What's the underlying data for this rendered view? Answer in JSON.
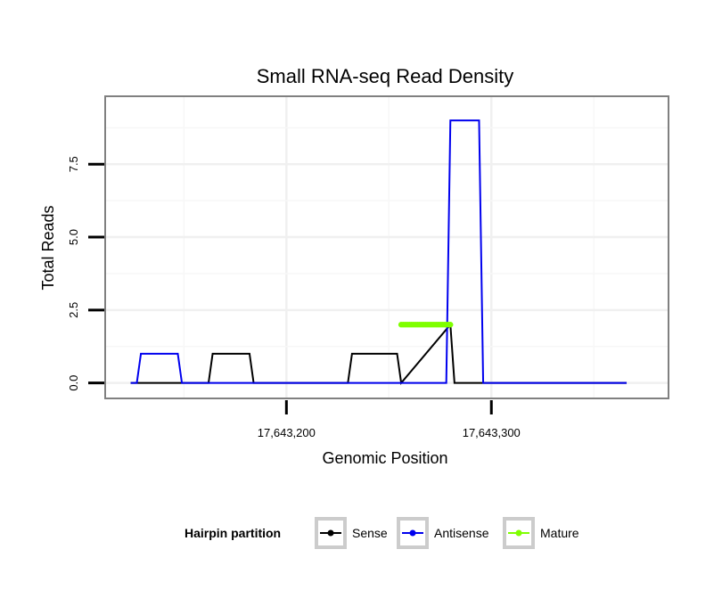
{
  "chart_data": {
    "type": "line",
    "title": "Small RNA-seq Read Density",
    "xlabel": "Genomic Position",
    "ylabel": "Total Reads",
    "xlim": [
      17643112,
      17643386
    ],
    "ylim": [
      -0.5,
      9.8
    ],
    "x_ticks": [
      17643200,
      17643300
    ],
    "x_tick_labels": [
      "17,643,200",
      "17,643,300"
    ],
    "y_ticks": [
      0,
      2.5,
      5,
      7.5
    ],
    "y_tick_labels": [
      "0.0",
      "2.5",
      "5.0",
      "7.5"
    ],
    "grid": true,
    "legend": {
      "title": "Hairpin partition",
      "position": "bottom",
      "entries": [
        "Sense",
        "Antisense",
        "Mature"
      ]
    },
    "series": [
      {
        "name": "Sense",
        "color": "#000000",
        "x": [
          17643124,
          17643162,
          17643164,
          17643182,
          17643184,
          17643230,
          17643232,
          17643254,
          17643256,
          17643280,
          17643282,
          17643366
        ],
        "y": [
          0,
          0,
          1,
          1,
          0,
          0,
          1,
          1,
          0,
          2,
          0,
          0
        ]
      },
      {
        "name": "Antisense",
        "color": "#0000ee",
        "x": [
          17643124,
          17643127,
          17643129,
          17643147,
          17643149,
          17643278,
          17643280,
          17643294,
          17643296,
          17643366
        ],
        "y": [
          0,
          0,
          1,
          1,
          0,
          0,
          9,
          9,
          0,
          0
        ]
      },
      {
        "name": "Mature",
        "color": "#7fff00",
        "x": [
          17643256,
          17643280
        ],
        "y": [
          2,
          2
        ]
      }
    ]
  }
}
